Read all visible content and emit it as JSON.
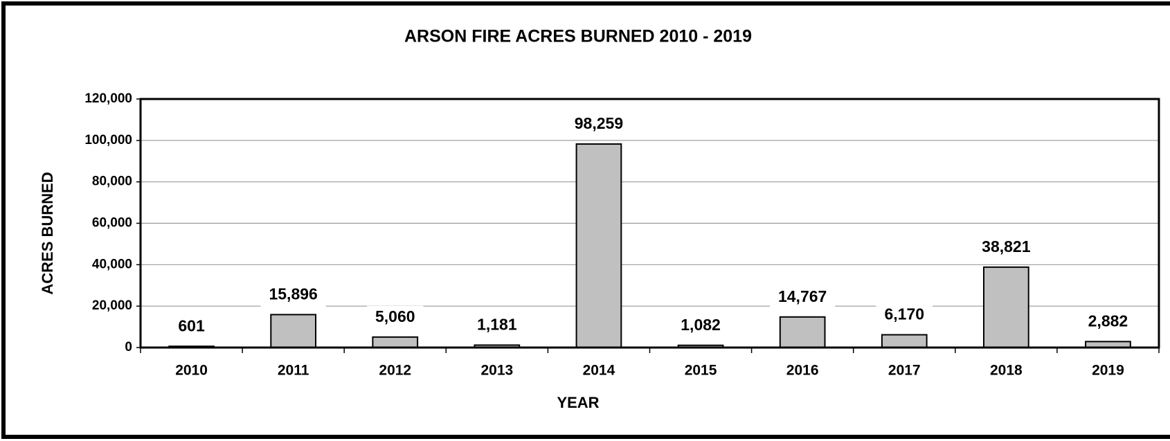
{
  "chart_data": {
    "type": "bar",
    "title": "ARSON FIRE ACRES BURNED 2010 - 2019",
    "x_label": "YEAR",
    "y_label": "ACRES BURNED",
    "categories": [
      "2010",
      "2011",
      "2012",
      "2013",
      "2014",
      "2015",
      "2016",
      "2017",
      "2018",
      "2019"
    ],
    "values": [
      601,
      15896,
      5060,
      1181,
      98259,
      1082,
      14767,
      6170,
      38821,
      2882
    ],
    "value_labels": [
      "601",
      "15,896",
      "5,060",
      "1,181",
      "98,259",
      "1,082",
      "14,767",
      "6,170",
      "38,821",
      "2,882"
    ],
    "color": "#c0c0c0",
    "ylim": [
      0,
      120000
    ],
    "yticks": [
      0,
      {
        "value": 20000,
        "label": "20,000"
      },
      {
        "value": 40000,
        "label": "40,000"
      },
      {
        "value": 60000,
        "label": "60,000"
      },
      {
        "value": 80000,
        "label": "80,000"
      },
      {
        "value": 100000,
        "label": "100,000"
      },
      {
        "value": 120000,
        "label": "120,000"
      }
    ],
    "grid": true
  }
}
